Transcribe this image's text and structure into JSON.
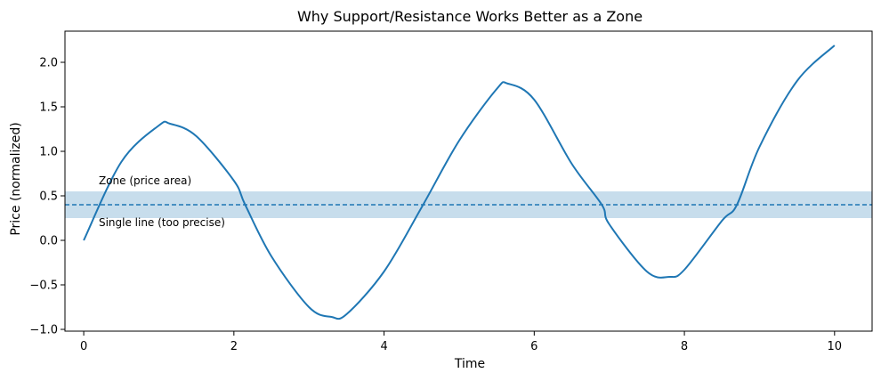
{
  "chart_data": {
    "type": "line",
    "title": "Why Support/Resistance Works Better as a Zone",
    "xlabel": "Time",
    "ylabel": "Price (normalized)",
    "xlim": [
      -0.25,
      10.5
    ],
    "ylim": [
      -1.02,
      2.35
    ],
    "xticks": [
      0,
      2,
      4,
      6,
      8,
      10
    ],
    "yticks": [
      -1.0,
      -0.5,
      0.0,
      0.5,
      1.0,
      1.5,
      2.0
    ],
    "ytick_labels": [
      "−1.0",
      "−0.5",
      "0.0",
      "0.5",
      "1.0",
      "1.5",
      "2.0"
    ],
    "grid": false,
    "series": [
      {
        "color": "#1f77b4",
        "x": [
          0,
          0.5,
          1.0,
          1.15,
          1.5,
          2.0,
          2.15,
          2.5,
          3.0,
          3.3,
          3.5,
          4.0,
          4.5,
          5.0,
          5.5,
          5.65,
          6.0,
          6.5,
          6.9,
          7.0,
          7.5,
          7.8,
          8.0,
          8.5,
          8.7,
          9.0,
          9.5,
          10.0
        ],
        "y": [
          0.0,
          0.88,
          1.29,
          1.31,
          1.17,
          0.67,
          0.4,
          -0.18,
          -0.75,
          -0.86,
          -0.83,
          -0.35,
          0.37,
          1.12,
          1.7,
          1.76,
          1.58,
          0.86,
          0.4,
          0.18,
          -0.35,
          -0.41,
          -0.33,
          0.22,
          0.4,
          1.05,
          1.79,
          2.19
        ]
      }
    ],
    "zone": {
      "y_low": 0.25,
      "y_high": 0.55,
      "color": "#1f77b4",
      "opacity": 0.25
    },
    "line": {
      "y": 0.4,
      "color": "#1f77b4",
      "style": "dashed"
    },
    "annotations": [
      {
        "text": "Zone (price area)",
        "x": 0.2,
        "y": 0.63
      },
      {
        "text": "Single line (too precise)",
        "x": 0.2,
        "y": 0.16
      }
    ]
  }
}
